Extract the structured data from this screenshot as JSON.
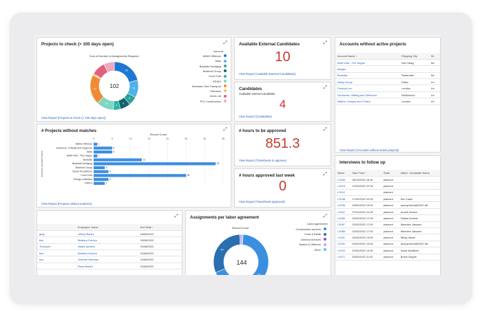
{
  "projects_check": {
    "title": "Projects to check (> 100 days open)",
    "chart_title": "Sum of Number of Assignments Required",
    "center_value": "102",
    "legend_title": "Account",
    "legend": [
      {
        "label": "ABAS Offshore",
        "color": "#1f77d4"
      },
      {
        "label": "Atlas",
        "color": "#4fb3e8"
      },
      {
        "label": "Boskalis Dredging",
        "color": "#2aa198"
      },
      {
        "label": "Botsford Group",
        "color": "#15616d"
      },
      {
        "label": "Coca Cola",
        "color": "#26b5a5"
      },
      {
        "label": "ERIKS",
        "color": "#7fd5c2"
      },
      {
        "label": "Harlmann Sea Transport",
        "color": "#f08b35"
      },
      {
        "label": "Heimann",
        "color": "#f4c06b"
      },
      {
        "label": "Jones Ltd",
        "color": "#e0607e"
      },
      {
        "label": "PCL Construction",
        "color": "#f2a7be"
      }
    ],
    "slice_labels": [
      "18",
      "10",
      "5",
      "6",
      "4",
      "10",
      "17",
      "1"
    ],
    "link": "View Report (Projects to check (> 100 days open))"
  },
  "external_candidates": {
    "title": "Available External Candidates",
    "value": "10",
    "link": "View Report (Available External Candidates)"
  },
  "candidates": {
    "title": "Candidates",
    "subtitle": "Available internal candidate",
    "value": "4",
    "link": "View Report (Candidates)"
  },
  "accounts": {
    "title": "Accounts without active projects",
    "columns": [
      "Account Name ↑",
      "Shipping City",
      "Sh"
    ],
    "rows": [
      [
        "BAM Infra - The Hague",
        "Den Haag",
        "Ne"
      ],
      [
        "Blogan",
        "-",
        "-"
      ],
      [
        "Boskalis",
        "Rotterdam",
        "Ne"
      ],
      [
        "Haley Group",
        "Eaton",
        "Un"
      ],
      [
        "Predovic Inc",
        "London",
        "Un"
      ],
      [
        "Schroeder, Witting and Gleichner",
        "Whitchurch",
        "Un"
      ],
      [
        "Wilkins, Kreiger and O'Hara",
        "London",
        "Un"
      ]
    ],
    "link": "View Report (Accounts without active projects)"
  },
  "projects_no_match": {
    "title": "# Projects without matches",
    "chart_title": "Record Count",
    "y_axis_label": "Account: Account Name",
    "link": "View Report (Projects without matches)"
  },
  "chart_data": {
    "type": "bar",
    "orientation": "horizontal",
    "title": "Record Count",
    "ylabel": "Account: Account Name",
    "categories": [
      "ABAS Offshore",
      "Anderson, O'Reilly and Hegemer",
      "Atlas",
      "BAM Infra - The Hague",
      "Boskalis",
      "Boskalis Dredging",
      "Botsford Group",
      "Carter-Runolfsson",
      "Coca Cola",
      "Energy Unlimited",
      "ERIKS"
    ],
    "values": [
      1,
      5,
      5,
      1,
      13,
      33,
      3,
      4,
      25,
      4,
      3
    ],
    "x_ticks": [
      0,
      5,
      10,
      15,
      20,
      25,
      30,
      35
    ],
    "xlim": [
      0,
      35
    ],
    "color": "#3d8fe0"
  },
  "hours_approve": {
    "title": "# hours to be approved",
    "value": "851.3",
    "link": "View Report (Timesheets to approve)"
  },
  "hours_last_week": {
    "title": "# hours approved last week",
    "value": "0",
    "link": "View Report (Timesheets approved)"
  },
  "interviews": {
    "title": "Interviews to follow up",
    "columns": [
      "Name",
      "Start Time ↑",
      "State",
      "Match: Candidate Name"
    ],
    "rows": [
      [
        "I-0038",
        "06/10/2022 18:30",
        "planned",
        ""
      ],
      [
        "I-0015",
        "13/10/2022 22:30",
        "planned",
        ""
      ],
      [
        "I-0012",
        "",
        "planned",
        ""
      ],
      [
        "I-0038",
        "17/02/2022 10:30",
        "planned",
        "Kim Lasle"
      ],
      [
        "I-0035",
        "18/02/2022 13:00",
        "planned",
        "anonymized@2022-08-"
      ],
      [
        "I-0047",
        "27/01/2022 10:30",
        "planned",
        "Audrik Sanlon"
      ],
      [
        "I-0089",
        "02/02/2022 17:00",
        "planned",
        "Rafael Inname"
      ],
      [
        "I-0087",
        "02/02/2022 17:00",
        "planned",
        "Meenten Janssen"
      ],
      [
        "I-0088",
        "02/02/2022 17:00",
        "planned",
        "Meenten Janssen"
      ],
      [
        "I-0031",
        "04/02/2022 13:00",
        "planned",
        "Micky Iliams"
      ],
      [
        "I-0032",
        "04/02/2022 14:00",
        "planned",
        "anonymized@2022-08-"
      ],
      [
        "I-0033",
        "22/02/2022 13:30",
        "planned",
        "Kacie Mcathick"
      ],
      [
        "I-0071",
        "25/02/2022 11:00",
        "planned",
        "Bruce Wayne"
      ]
    ]
  },
  "employees": {
    "columns": [
      "",
      "Employee: Name",
      "End Date ↑"
    ],
    "rows": [
      [
        "gray",
        "Jeffrey Banks",
        "18/08/2022"
      ],
      [
        "tion",
        "Barbara Gordon",
        "29/08/2022"
      ],
      [
        "Transport",
        "Nadia Janseis",
        "31/08/2022"
      ],
      [
        "tion",
        "Barbara Gordon",
        "31/08/2022"
      ],
      [
        "tion",
        "Graham Newman",
        "31/08/2022"
      ],
      [
        "",
        "Rosa Marieli",
        "31/08/2022"
      ]
    ]
  },
  "labor": {
    "title": "Assignments per labor agreement",
    "chart_title": "Record Count",
    "center_value": "144",
    "legend_title": "Labor agreement",
    "legend": [
      {
        "label": "Construction workers",
        "color": "#3a8fe0"
      },
      {
        "label": "Food & Retail",
        "color": "#2a6fb0"
      },
      {
        "label": "General services",
        "color": "#8e44ef"
      },
      {
        "label": "Marine & Offshore",
        "color": "#c59bf2"
      },
      {
        "label": "Other",
        "color": "#4fc3ef"
      }
    ],
    "slice_labels": [
      "97",
      "44"
    ]
  }
}
